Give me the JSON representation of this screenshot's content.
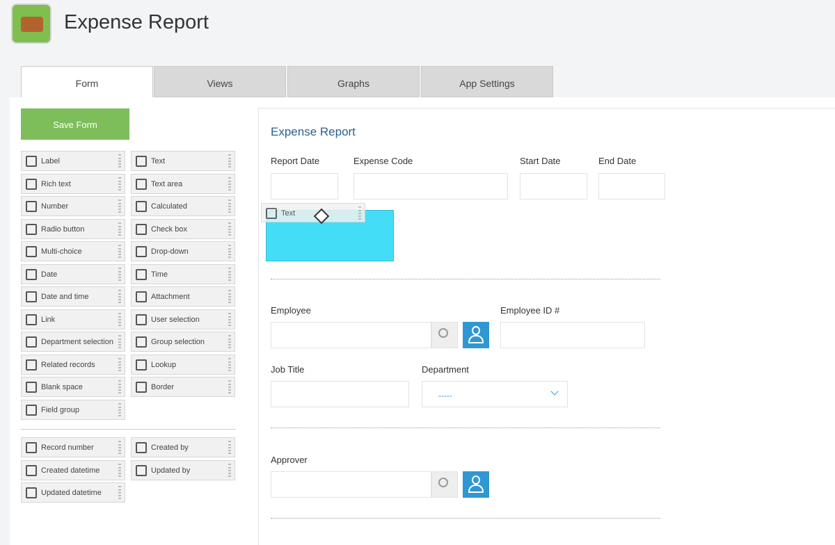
{
  "app": {
    "title": "Expense Report"
  },
  "tabs": [
    "Form",
    "Views",
    "Graphs",
    "App Settings"
  ],
  "save_button": "Save Form",
  "palette": [
    "Label",
    "Text",
    "Rich text",
    "Text area",
    "Number",
    "Calculated",
    "Radio button",
    "Check box",
    "Multi-choice",
    "Drop-down",
    "Date",
    "Time",
    "Date and time",
    "Attachment",
    "Link",
    "User selection",
    "Department selection",
    "Group selection",
    "Related records",
    "Lookup",
    "Blank space",
    "Border",
    "Field group"
  ],
  "system_fields": [
    "Record number",
    "Created by",
    "Created datetime",
    "Updated by",
    "Updated datetime"
  ],
  "form": {
    "title": "Expense Report",
    "fields": [
      "Report Date",
      "Expense Code",
      "Start Date",
      "End Date",
      "Employee",
      "Employee ID #",
      "Job Title",
      "Department",
      "Approver"
    ],
    "dragging": "Text",
    "dropdown_placeholder": "-----"
  }
}
